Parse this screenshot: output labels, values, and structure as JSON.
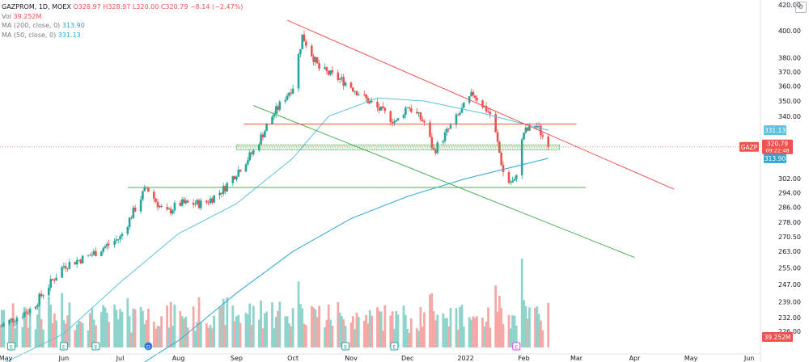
{
  "legend": {
    "symbol": "GAZPROM, 1D, MOEX",
    "open": "O328.97",
    "high": "H328.97",
    "low": "L320.00",
    "close": "C320.79",
    "change": "−8.14 (−2.47%)",
    "vol_label": "Vol",
    "vol_value": "39.252M",
    "ma200_label": "MA (200, close, 0)",
    "ma200_value": "313.90",
    "ma50_label": "MA (50, close, 0)",
    "ma50_value": "331.13"
  },
  "price_scale": {
    "ticks": [
      "420.00",
      "400.00",
      "380.00",
      "370.00",
      "360.00",
      "350.00",
      "340.00",
      "331.13",
      "320.79",
      "313.90",
      "302.00",
      "294.00",
      "286.00",
      "278.00",
      "270.50",
      "263.00",
      "255.00",
      "247.00",
      "239.00",
      "232.00",
      "226.00",
      "39.252M"
    ],
    "scale_type": "logarithmic"
  },
  "price_tags": {
    "ticker": "GAZP",
    "last": "320.79",
    "countdown": "09:22:48",
    "ma50": "331.13",
    "ma200": "313.90",
    "vol": "39.252M"
  },
  "time_scale": {
    "labels": [
      "May",
      "Jun",
      "Jul",
      "Aug",
      "Sep",
      "Oct",
      "Nov",
      "Dec",
      "2022",
      "Feb",
      "Mar",
      "Apr",
      "May",
      "Jun"
    ]
  },
  "event_markers": [
    "E",
    "E",
    "E",
    "D",
    "E",
    "E",
    "E"
  ],
  "colors": {
    "up": "#26a69a",
    "down": "#ef5350",
    "volume_up": "#8fd4cc",
    "volume_down": "#f5a9a7",
    "ma50": "#5bc4dc",
    "ma200": "#2fa8d6",
    "resistance_trendline": "#ef5350",
    "support_trendline": "#4caf50",
    "horizontal_red": "#ef5350",
    "horizontal_green": "#4caf50"
  },
  "chart_data": {
    "type": "candlestick",
    "symbol": "GAZPROM",
    "interval": "1D",
    "exchange": "MOEX",
    "last_close": 320.79,
    "last_volume_millions": 39.252,
    "ma50_last": 331.13,
    "ma200_last": 313.9,
    "price_path": [
      {
        "x": "2021-04-28",
        "close": 228
      },
      {
        "x": "2021-05-15",
        "close": 236
      },
      {
        "x": "2021-06-01",
        "close": 256
      },
      {
        "x": "2021-06-15",
        "close": 261
      },
      {
        "x": "2021-07-01",
        "close": 270
      },
      {
        "x": "2021-07-15",
        "close": 297
      },
      {
        "x": "2021-07-25",
        "close": 282
      },
      {
        "x": "2021-08-01",
        "close": 288
      },
      {
        "x": "2021-08-15",
        "close": 288
      },
      {
        "x": "2021-08-25",
        "close": 296
      },
      {
        "x": "2021-09-10",
        "close": 318
      },
      {
        "x": "2021-09-20",
        "close": 340
      },
      {
        "x": "2021-10-01",
        "close": 360
      },
      {
        "x": "2021-10-06",
        "close": 396
      },
      {
        "x": "2021-10-15",
        "close": 372
      },
      {
        "x": "2021-10-30",
        "close": 362
      },
      {
        "x": "2021-11-10",
        "close": 350
      },
      {
        "x": "2021-11-25",
        "close": 336
      },
      {
        "x": "2021-12-01",
        "close": 347
      },
      {
        "x": "2021-12-10",
        "close": 336
      },
      {
        "x": "2021-12-15",
        "close": 318
      },
      {
        "x": "2021-12-25",
        "close": 335
      },
      {
        "x": "2022-01-05",
        "close": 355
      },
      {
        "x": "2022-01-15",
        "close": 340
      },
      {
        "x": "2022-01-22",
        "close": 300
      },
      {
        "x": "2022-01-27",
        "close": 300
      },
      {
        "x": "2022-02-01",
        "close": 330
      },
      {
        "x": "2022-02-08",
        "close": 334
      },
      {
        "x": "2022-02-14",
        "close": 320.79
      }
    ],
    "ma50_path": [
      {
        "x": "2021-04-28",
        "close": 212
      },
      {
        "x": "2021-06-01",
        "close": 225
      },
      {
        "x": "2021-07-01",
        "close": 248
      },
      {
        "x": "2021-08-01",
        "close": 272
      },
      {
        "x": "2021-09-01",
        "close": 288
      },
      {
        "x": "2021-10-01",
        "close": 314
      },
      {
        "x": "2021-10-20",
        "close": 340
      },
      {
        "x": "2021-11-15",
        "close": 352
      },
      {
        "x": "2021-12-10",
        "close": 350
      },
      {
        "x": "2022-01-10",
        "close": 342
      },
      {
        "x": "2022-02-14",
        "close": 331.13
      }
    ],
    "ma200_path": [
      {
        "x": "2021-07-01",
        "close": 207
      },
      {
        "x": "2021-08-01",
        "close": 222
      },
      {
        "x": "2021-09-01",
        "close": 243
      },
      {
        "x": "2021-10-01",
        "close": 263
      },
      {
        "x": "2021-11-01",
        "close": 280
      },
      {
        "x": "2021-12-01",
        "close": 292
      },
      {
        "x": "2022-01-01",
        "close": 302
      },
      {
        "x": "2022-02-14",
        "close": 313.9
      }
    ],
    "drawings": {
      "resistance_trendline": [
        {
          "x": "2021-09-28",
          "close": 408
        },
        {
          "x": "2022-04-22",
          "close": 296
        }
      ],
      "support_trendline": [
        {
          "x": "2021-09-10",
          "close": 347
        },
        {
          "x": "2022-04-01",
          "close": 260
        }
      ],
      "horizontal_red": 335,
      "horizontal_green": 297,
      "support_zone": [
        319,
        322
      ]
    },
    "xlim": [
      "2021-04-28",
      "2022-06-07"
    ],
    "ylim": [
      218,
      422
    ]
  }
}
